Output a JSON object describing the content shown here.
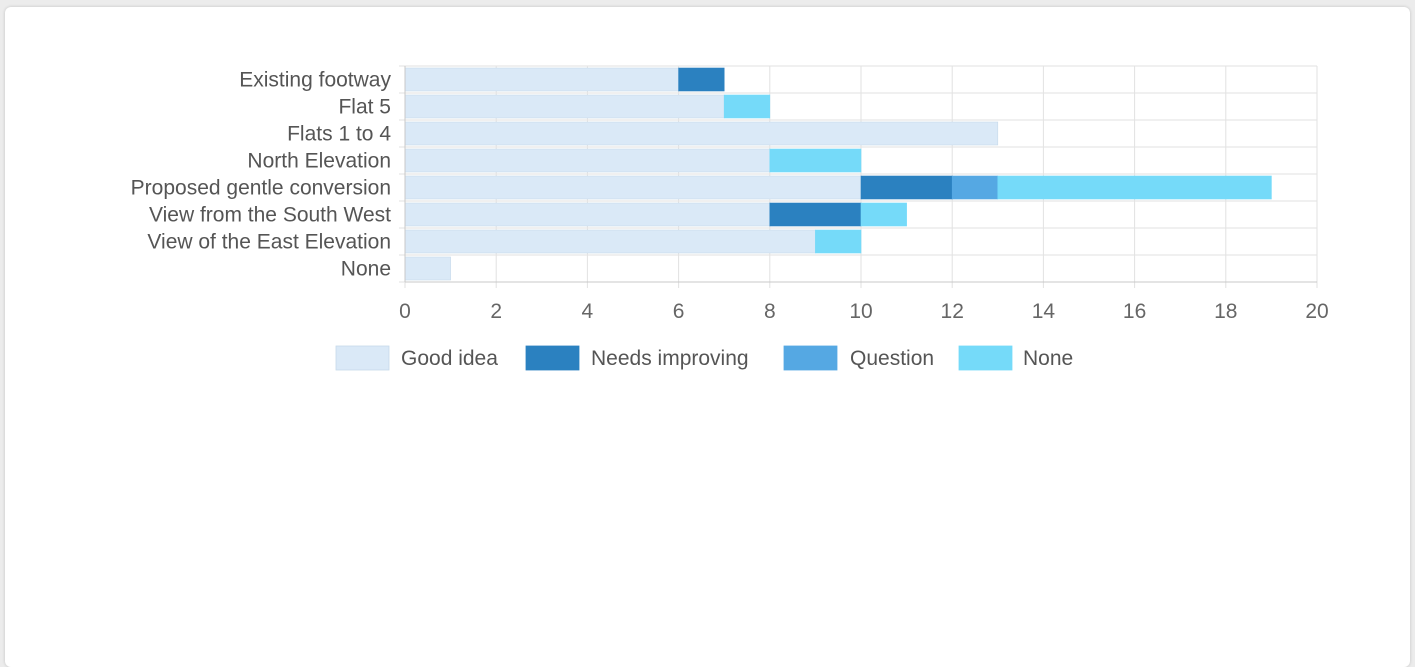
{
  "chart_data": {
    "type": "bar",
    "orientation": "horizontal",
    "stacked": true,
    "categories": [
      "Existing footway",
      "Flat 5",
      "Flats 1 to 4",
      "North Elevation",
      "Proposed gentle conversion",
      "View from the South West",
      "View of the East Elevation",
      "None"
    ],
    "series": [
      {
        "name": "Good idea",
        "color": "#dae9f7",
        "values": [
          6,
          7,
          13,
          8,
          10,
          8,
          9,
          1
        ]
      },
      {
        "name": "Needs improving",
        "color": "#2b81c0",
        "values": [
          1,
          0,
          0,
          0,
          2,
          2,
          0,
          0
        ]
      },
      {
        "name": "Question",
        "color": "#55a8e3",
        "values": [
          0,
          0,
          0,
          0,
          1,
          0,
          0,
          0
        ]
      },
      {
        "name": "None",
        "color": "#75daf9",
        "values": [
          0,
          1,
          0,
          2,
          6,
          1,
          1,
          0
        ]
      }
    ],
    "xlim": [
      0,
      20
    ],
    "xticks": [
      "0",
      "2",
      "4",
      "6",
      "8",
      "10",
      "12",
      "14",
      "16",
      "18",
      "20"
    ],
    "grid": true,
    "legend_position": "bottom"
  }
}
